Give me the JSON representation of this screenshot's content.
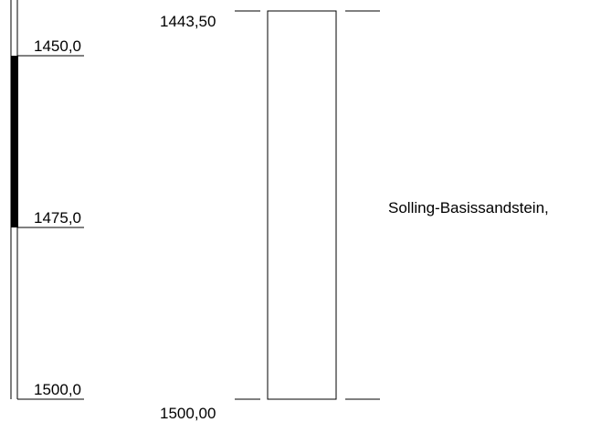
{
  "depth_column": {
    "ticks": [
      {
        "label": "1450,0",
        "depth": 1450
      },
      {
        "label": "1475,0",
        "depth": 1475
      },
      {
        "label": "1500,0",
        "depth": 1500
      }
    ],
    "filled_interval": {
      "from": 1450,
      "to": 1475
    }
  },
  "layer": {
    "top_label": "1443,50",
    "bottom_label": "1500,00",
    "top_depth": 1443.5,
    "bottom_depth": 1500.0,
    "description": "Solling-Basissandstein,"
  }
}
